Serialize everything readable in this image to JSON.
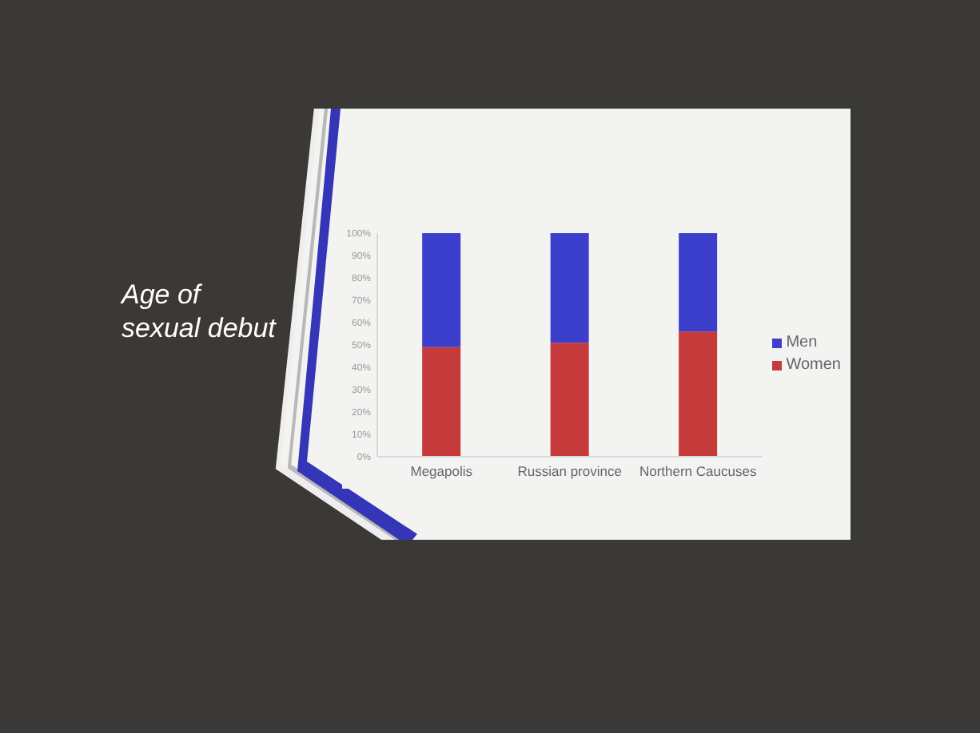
{
  "chart_data": {
    "type": "bar",
    "title": "Age of sexual debut",
    "categories": [
      "Megapolis",
      "Russian province",
      "Northern Caucuses"
    ],
    "series": [
      {
        "name": "Women",
        "color": "#c53a3a",
        "values": [
          49,
          51,
          56
        ]
      },
      {
        "name": "Men",
        "color": "#3c3fcc",
        "values": [
          51,
          49,
          44
        ]
      }
    ],
    "stacked": true,
    "ylim": [
      0,
      100
    ],
    "yticks": [
      {
        "value": 0,
        "label": "0%"
      },
      {
        "value": 10,
        "label": "10%"
      },
      {
        "value": 20,
        "label": "20%"
      },
      {
        "value": 30,
        "label": "30%"
      },
      {
        "value": 40,
        "label": "40%"
      },
      {
        "value": 50,
        "label": "50%"
      },
      {
        "value": 60,
        "label": "60%"
      },
      {
        "value": 70,
        "label": "70%"
      },
      {
        "value": 80,
        "label": "80%"
      },
      {
        "value": 90,
        "label": "90%"
      },
      {
        "value": 100,
        "label": "100%"
      }
    ],
    "legend": "right"
  }
}
